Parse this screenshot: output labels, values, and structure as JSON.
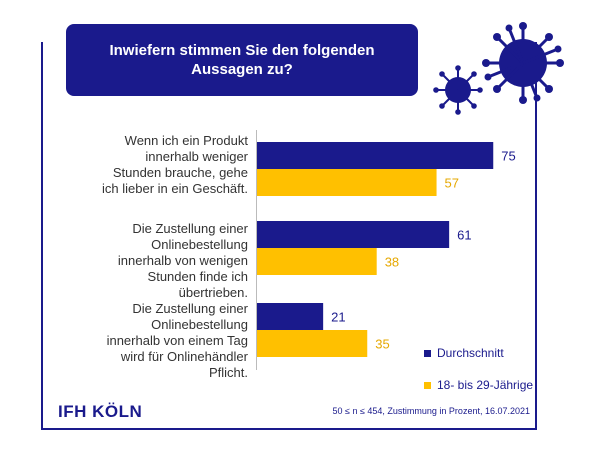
{
  "header": {
    "title": "Inwiefern stimmen Sie den folgenden Aussagen zu?"
  },
  "footer": {
    "logo": "IFH KÖLN",
    "note": "50 ≤ n ≤ 454, Zustimmung in Prozent, 16.07.2021"
  },
  "colors": {
    "primary": "#1a1a8c",
    "secondary": "#ffc000"
  },
  "icons": [
    "virus-icon",
    "virus-icon"
  ],
  "chart_data": {
    "type": "bar",
    "orientation": "horizontal",
    "categories": [
      "Wenn ich ein Produkt innerhalb weniger Stunden brauche, gehe ich lieber in ein Geschäft.",
      "Die Zustellung einer Onlinebestellung innerhalb von wenigen Stunden finde ich übertrieben.",
      "Die Zustellung einer Onlinebestellung innerhalb von einem Tag wird für Onlinehändler Pflicht."
    ],
    "series": [
      {
        "name": "Durchschnitt",
        "color": "#1a1a8c",
        "values": [
          75,
          61,
          21
        ]
      },
      {
        "name": "18- bis 29-Jährige",
        "color": "#ffc000",
        "values": [
          57,
          38,
          35
        ]
      }
    ],
    "xlim": [
      0,
      100
    ],
    "legend_position": "bottom-right",
    "data_labels": true,
    "grid": false
  }
}
